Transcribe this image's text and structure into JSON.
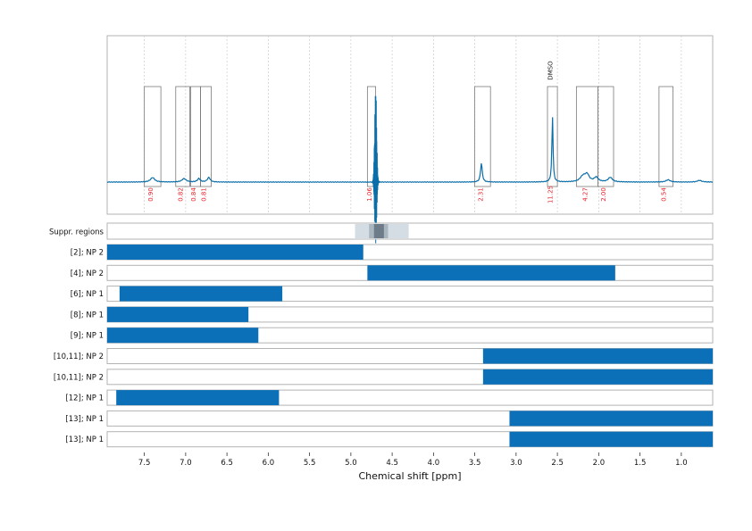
{
  "chart_data": {
    "type": "line",
    "xlabel": "Chemical shift [ppm]",
    "x_reversed": true,
    "xlim": [
      7.95,
      0.62
    ],
    "x_ticks": [
      7.5,
      7.0,
      6.5,
      6.0,
      5.5,
      5.0,
      4.5,
      4.0,
      3.5,
      3.0,
      2.5,
      2.0,
      1.5,
      1.0
    ],
    "x_tick_labels": [
      "7.5",
      "7.0",
      "6.5",
      "6.0",
      "5.5",
      "5.0",
      "4.5",
      "4.0",
      "3.5",
      "3.0",
      "2.5",
      "2.0",
      "1.5",
      "1.0"
    ],
    "grid": true,
    "spectrum": {
      "color": "#0b6ea8",
      "peaks": [
        {
          "ppm": 7.4,
          "height": 0.04,
          "width": 0.03
        },
        {
          "ppm": 7.02,
          "height": 0.03,
          "width": 0.03
        },
        {
          "ppm": 6.84,
          "height": 0.03,
          "width": 0.02
        },
        {
          "ppm": 6.72,
          "height": 0.04,
          "width": 0.02
        },
        {
          "ppm": 3.42,
          "height": 0.17,
          "width": 0.012
        },
        {
          "ppm": 2.56,
          "height": 0.6,
          "width": 0.008
        },
        {
          "ppm": 2.19,
          "height": 0.05,
          "width": 0.04
        },
        {
          "ppm": 2.14,
          "height": 0.06,
          "width": 0.03
        },
        {
          "ppm": 2.03,
          "height": 0.04,
          "width": 0.03
        },
        {
          "ppm": 1.86,
          "height": 0.04,
          "width": 0.03
        },
        {
          "ppm": 1.16,
          "height": 0.02,
          "width": 0.03
        },
        {
          "ppm": 0.78,
          "height": 0.015,
          "width": 0.03
        }
      ],
      "water": {
        "ppm": 4.7,
        "height": 0.85,
        "depth": 0.55,
        "width": 0.08
      }
    },
    "integration_boxes": [
      {
        "from": 7.5,
        "to": 7.3,
        "label": "0.90"
      },
      {
        "from": 7.12,
        "to": 6.95,
        "label": "0.82"
      },
      {
        "from": 6.94,
        "to": 6.82,
        "label": "0.84"
      },
      {
        "from": 6.82,
        "to": 6.69,
        "label": "0.81"
      },
      {
        "from": 4.8,
        "to": 4.7,
        "label": "1.06"
      },
      {
        "from": 3.5,
        "to": 3.31,
        "label": "2.31"
      },
      {
        "from": 2.62,
        "to": 2.5,
        "label": "11.25",
        "annotation": "DMSO"
      },
      {
        "from": 2.27,
        "to": 2.01,
        "label": "4.27"
      },
      {
        "from": 2.01,
        "to": 1.82,
        "label": "2.00"
      },
      {
        "from": 1.27,
        "to": 1.1,
        "label": "0.54"
      }
    ],
    "suppression": {
      "label": "Suppr. regions",
      "bands": [
        {
          "from": 4.95,
          "to": 4.3,
          "level": 1
        },
        {
          "from": 4.78,
          "to": 4.55,
          "level": 2
        },
        {
          "from": 4.72,
          "to": 4.6,
          "level": 3
        }
      ]
    },
    "rows": [
      {
        "label": "[2]; NP 2",
        "from": 7.95,
        "to": 4.85
      },
      {
        "label": "[4]; NP 2",
        "from": 4.8,
        "to": 1.8
      },
      {
        "label": "[6]; NP 1",
        "from": 7.8,
        "to": 5.83
      },
      {
        "label": "[8]; NP 1",
        "from": 7.95,
        "to": 6.24
      },
      {
        "label": "[9]; NP 1",
        "from": 7.95,
        "to": 6.12
      },
      {
        "label": "[10,11]; NP 2",
        "from": 3.4,
        "to": 0.62
      },
      {
        "label": "[10,11]; NP 2",
        "from": 3.4,
        "to": 0.62
      },
      {
        "label": "[12]; NP 1",
        "from": 7.84,
        "to": 5.87
      },
      {
        "label": "[13]; NP 1",
        "from": 3.08,
        "to": 0.62
      },
      {
        "label": "[13]; NP 1",
        "from": 3.08,
        "to": 0.62
      }
    ],
    "colors": {
      "bar": "#0b70b8",
      "integral_label": "#e8222a",
      "frame": "#b3b3b3",
      "grid": "#cccccc",
      "suppr_levels": [
        "#d4dde4",
        "#a9b6c0",
        "#6d7c88"
      ]
    }
  }
}
